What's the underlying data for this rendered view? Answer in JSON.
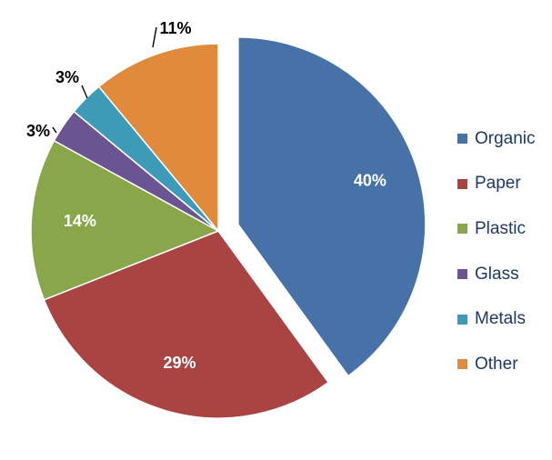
{
  "chart_data": {
    "type": "pie",
    "title": "",
    "categories": [
      "Organic",
      "Paper",
      "Plastic",
      "Glass",
      "Metals",
      "Other"
    ],
    "values": [
      40,
      29,
      14,
      3,
      3,
      11
    ],
    "labels": [
      "40%",
      "29%",
      "14%",
      "3%",
      "3%",
      "11%"
    ],
    "colors": [
      "#4672a8",
      "#a94442",
      "#8aa64a",
      "#6a5491",
      "#3e9bb8",
      "#e08a3c"
    ],
    "exploded": [
      "Organic"
    ],
    "legend": "right"
  }
}
